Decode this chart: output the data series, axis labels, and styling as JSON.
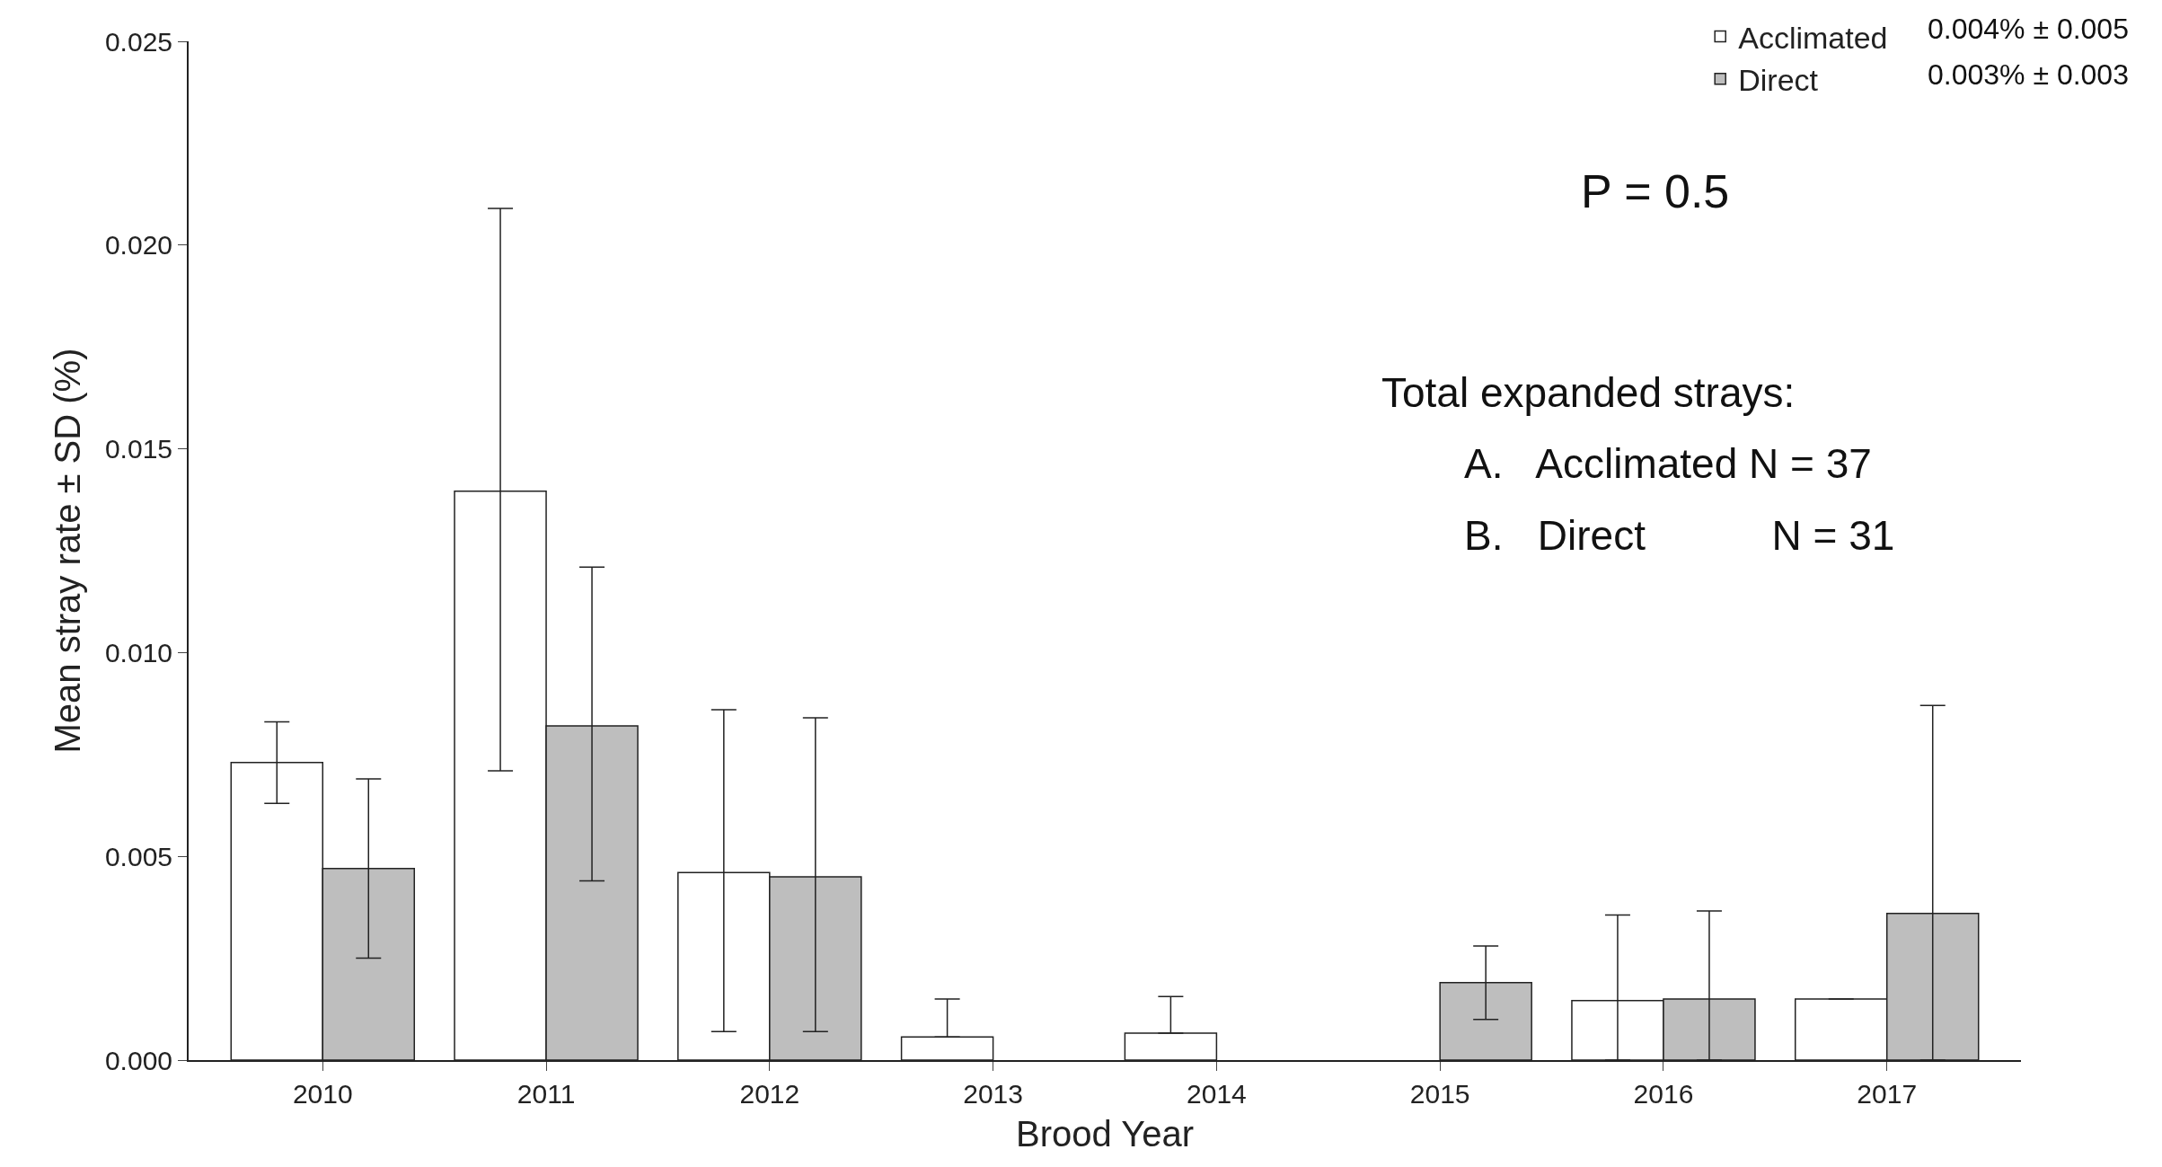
{
  "chart_data": {
    "type": "bar",
    "xlabel": "Brood Year",
    "ylabel": "Mean stray rate ± SD (%)",
    "categories": [
      "2010",
      "2011",
      "2012",
      "2013",
      "2014",
      "2015",
      "2016",
      "2017"
    ],
    "series": [
      {
        "name": "Acclimated",
        "color": "#ffffff",
        "values": [
          0.0073,
          0.01396,
          0.0046,
          0.00057,
          0.00066,
          null,
          0.00146,
          0.0015
        ],
        "errors": [
          [
            0.0063,
            0.0083
          ],
          [
            0.0071,
            0.0209
          ],
          [
            0.0007,
            0.0086
          ],
          [
            0.00057,
            0.0015
          ],
          [
            0.00066,
            0.00156
          ],
          null,
          [
            0,
            0.00356
          ],
          [
            0.0015,
            0.0015
          ]
        ]
      },
      {
        "name": "Direct",
        "color": "#bebebe",
        "values": [
          0.0047,
          0.0082,
          0.0045,
          null,
          null,
          0.0019,
          0.0015,
          0.0036
        ],
        "errors": [
          [
            0.0025,
            0.0069
          ],
          [
            0.0044,
            0.0121
          ],
          [
            0.0007,
            0.0084
          ],
          null,
          null,
          [
            0.001,
            0.0028
          ],
          [
            0,
            0.00366
          ],
          [
            0,
            0.0087
          ]
        ]
      }
    ],
    "ylim": [
      0,
      0.025
    ],
    "yticks": [
      {
        "value": 0,
        "label": "0.000"
      },
      {
        "value": 0.005,
        "label": "0.005"
      },
      {
        "value": 0.01,
        "label": "0.010"
      },
      {
        "value": 0.015,
        "label": "0.015"
      },
      {
        "value": 0.02,
        "label": "0.020"
      },
      {
        "value": 0.025,
        "label": "0.025"
      }
    ],
    "legend": "top right",
    "annotations": [
      "0.004% ± 0.005",
      "0.003% ± 0.003",
      "P = 0.5",
      "Total expanded strays:",
      "A.   Acclimated N = 37",
      "B.   Direct           N = 31"
    ]
  }
}
